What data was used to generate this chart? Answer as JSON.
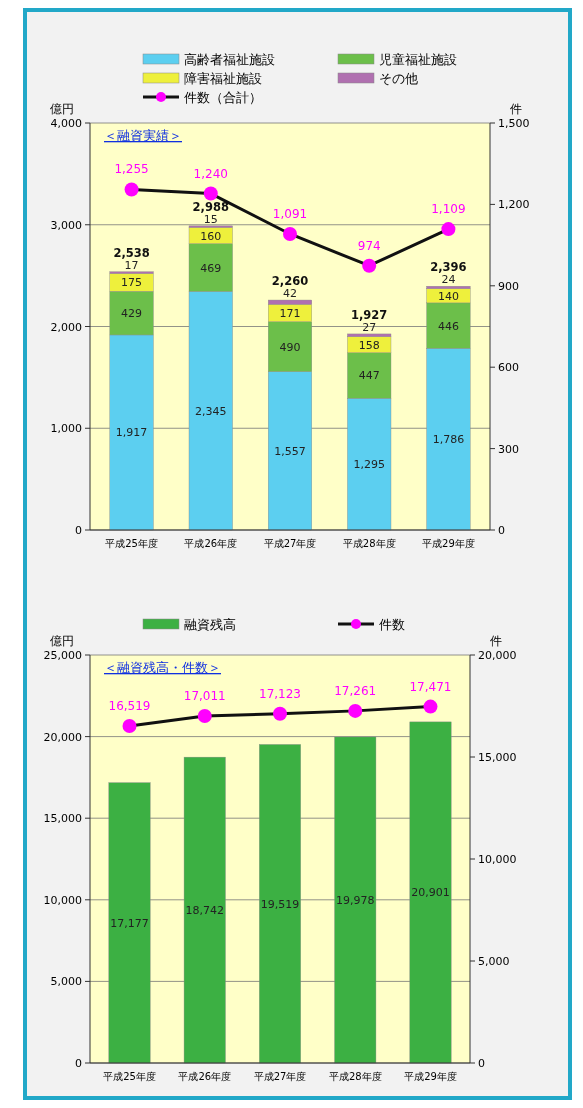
{
  "chart_data": [
    {
      "type": "bar",
      "title": "＜融資実績＞",
      "ylabel": "億円",
      "y2label": "件",
      "categories": [
        "平成25年度",
        "平成26年度",
        "平成27年度",
        "平成28年度",
        "平成29年度"
      ],
      "stacked": true,
      "series": [
        {
          "name": "高齢者福祉施設",
          "color": "#5ccff0",
          "values": [
            1917,
            2345,
            1557,
            1295,
            1786
          ],
          "value_labels": [
            "1,917",
            "2,345",
            "1,557",
            "1,295",
            "1,786"
          ]
        },
        {
          "name": "児童福祉施設",
          "color": "#6cbf4a",
          "values": [
            429,
            469,
            490,
            447,
            446
          ],
          "value_labels": [
            "429",
            "469",
            "490",
            "447",
            "446"
          ]
        },
        {
          "name": "障害福祉施設",
          "color": "#eef03c",
          "values": [
            175,
            160,
            171,
            158,
            140
          ],
          "value_labels": [
            "175",
            "160",
            "171",
            "158",
            "140"
          ]
        },
        {
          "name": "その他",
          "color": "#b070b0",
          "values": [
            17,
            15,
            42,
            27,
            24
          ],
          "value_labels": [
            "17",
            "15",
            "42",
            "27",
            "24"
          ]
        },
        {
          "name": "件数（合計）",
          "type": "line",
          "axis": "y2",
          "color": "#ff00ff",
          "values": [
            1255,
            1240,
            1091,
            974,
            1109
          ],
          "value_labels": [
            "1,255",
            "1,240",
            "1,091",
            "974",
            "1,109"
          ]
        }
      ],
      "totals": [
        "2,538",
        "2,988",
        "2,260",
        "1,927",
        "2,396"
      ],
      "marker": "circle",
      "grid": "y",
      "legend": "top",
      "ylim": [
        0,
        4000
      ],
      "yticks": [
        {
          "value": 0,
          "label": "0"
        },
        {
          "value": 1000,
          "label": "1,000"
        },
        {
          "value": 2000,
          "label": "2,000"
        },
        {
          "value": 3000,
          "label": "3,000"
        },
        {
          "value": 4000,
          "label": "4,000"
        }
      ],
      "y2lim": [
        0,
        1500
      ],
      "y2ticks": [
        {
          "value": 0,
          "label": "0"
        },
        {
          "value": 300,
          "label": "300"
        },
        {
          "value": 600,
          "label": "600"
        },
        {
          "value": 900,
          "label": "900"
        },
        {
          "value": 1200,
          "label": "1,200"
        },
        {
          "value": 1500,
          "label": "1,500"
        }
      ]
    },
    {
      "type": "bar",
      "title": "＜融資残高・件数＞",
      "ylabel": "億円",
      "y2label": "件",
      "categories": [
        "平成25年度",
        "平成26年度",
        "平成27年度",
        "平成28年度",
        "平成29年度"
      ],
      "series": [
        {
          "name": "融資残高",
          "color": "#3cb043",
          "values": [
            17177,
            18742,
            19519,
            19978,
            20901
          ],
          "value_labels": [
            "17,177",
            "18,742",
            "19,519",
            "19,978",
            "20,901"
          ]
        },
        {
          "name": "件数",
          "type": "line",
          "axis": "y2",
          "color": "#ff00ff",
          "values": [
            16519,
            17011,
            17123,
            17261,
            17471
          ],
          "value_labels": [
            "16,519",
            "17,011",
            "17,123",
            "17,261",
            "17,471"
          ]
        }
      ],
      "marker": "circle",
      "grid": "y",
      "legend": "top",
      "ylim": [
        0,
        25000
      ],
      "yticks": [
        {
          "value": 0,
          "label": "0"
        },
        {
          "value": 5000,
          "label": "5,000"
        },
        {
          "value": 10000,
          "label": "10,000"
        },
        {
          "value": 15000,
          "label": "15,000"
        },
        {
          "value": 20000,
          "label": "20,000"
        },
        {
          "value": 25000,
          "label": "25,000"
        }
      ],
      "y2lim": [
        0,
        20000
      ],
      "y2ticks": [
        {
          "value": 0,
          "label": "0"
        },
        {
          "value": 5000,
          "label": "5,000"
        },
        {
          "value": 10000,
          "label": "10,000"
        },
        {
          "value": 15000,
          "label": "15,000"
        },
        {
          "value": 20000,
          "label": "20,000"
        }
      ]
    }
  ]
}
